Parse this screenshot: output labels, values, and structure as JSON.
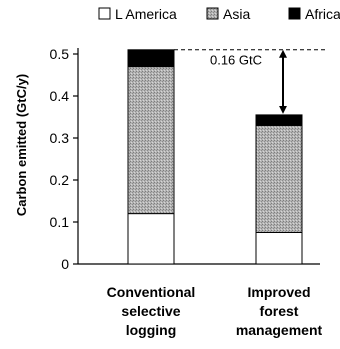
{
  "chart_data": {
    "type": "bar",
    "stacked": true,
    "categories": [
      [
        "Conventional",
        "selective",
        "logging"
      ],
      [
        "Improved",
        "forest",
        "management"
      ]
    ],
    "series": [
      {
        "name": "L America",
        "values": [
          0.12,
          0.075
        ],
        "color": "#ffffff",
        "pattern": "none"
      },
      {
        "name": "Asia",
        "values": [
          0.35,
          0.255
        ],
        "color": "#b0b0b0",
        "pattern": "stipple"
      },
      {
        "name": "Africa",
        "values": [
          0.04,
          0.025
        ],
        "color": "#000000",
        "pattern": "none"
      }
    ],
    "ylabel": "Carbon emitted (GtC/y)",
    "ylim": [
      0,
      0.5
    ],
    "yticks": [
      0,
      0.1,
      0.2,
      0.3,
      0.4,
      0.5
    ],
    "ytick_labels": [
      "0",
      "0.1",
      "0.2",
      "0.3",
      "0.4",
      "0.5"
    ],
    "legend_position": "top",
    "grid": false,
    "annotation": {
      "text": "0.16 GtC",
      "from_value": 0.51,
      "to_value": 0.355,
      "style": "dashed reference line with double-headed arrow"
    }
  }
}
